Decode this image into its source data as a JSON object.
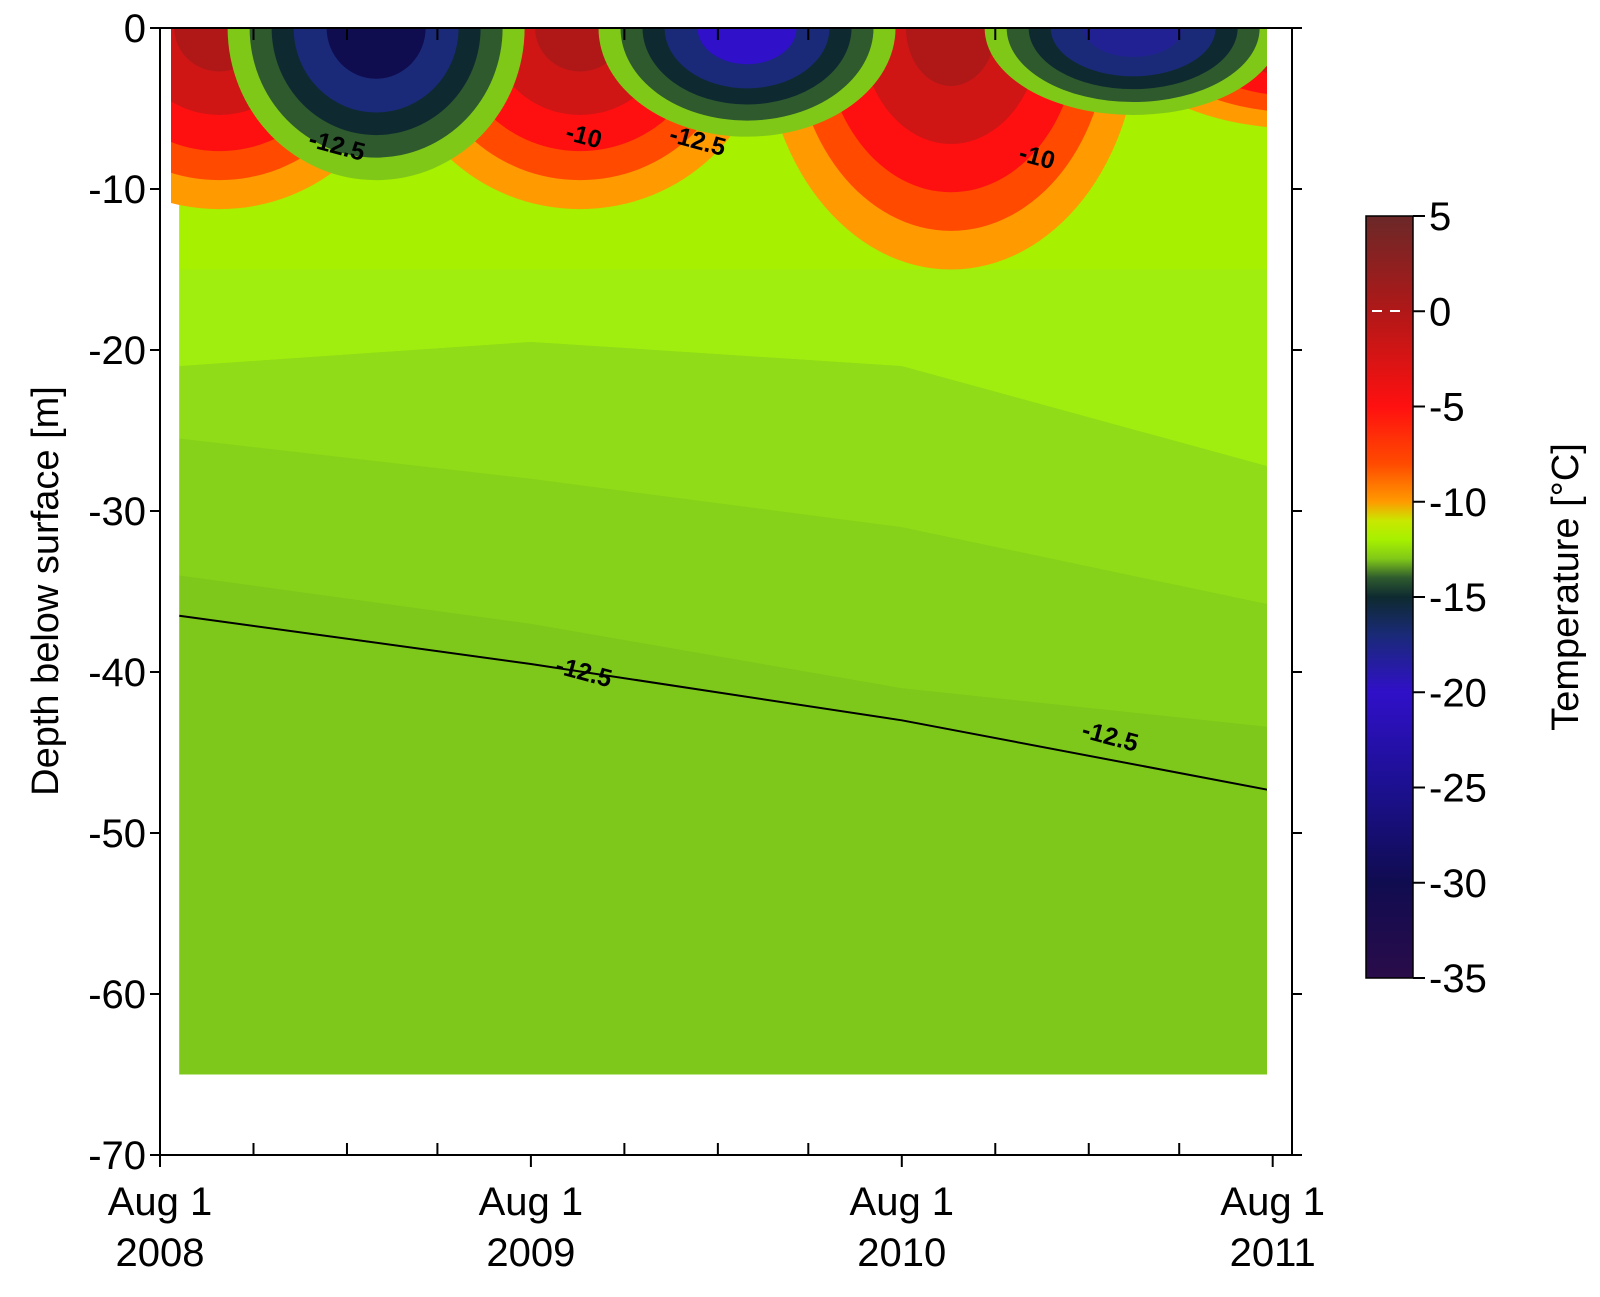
{
  "chart_data": {
    "type": "heatmap",
    "subtype": "filled-contour",
    "title": "",
    "xlabel": "",
    "ylabel": "Depth below surface [m]",
    "x_ticks_major": [
      {
        "date": "2008-08-01",
        "line1": "Aug 1",
        "line2": "2008"
      },
      {
        "date": "2009-08-01",
        "line1": "Aug 1",
        "line2": "2009"
      },
      {
        "date": "2010-08-01",
        "line1": "Aug 1",
        "line2": "2010"
      },
      {
        "date": "2011-08-01",
        "line1": "Aug 1",
        "line2": "2011"
      }
    ],
    "x_ticks_minor": [
      "2008-11-01",
      "2009-02-01",
      "2009-05-01",
      "2009-11-01",
      "2010-02-01",
      "2010-05-01",
      "2010-11-01",
      "2011-02-01",
      "2011-05-01"
    ],
    "xlim": [
      "2008-08-01",
      "2011-08-20"
    ],
    "y_ticks": [
      0,
      -10,
      -20,
      -30,
      -40,
      -50,
      -60,
      -70
    ],
    "y_tick_labels": [
      "0",
      "-10",
      "-20",
      "-30",
      "-40",
      "-50",
      "-60",
      "-70"
    ],
    "ylim": [
      -70,
      0
    ],
    "data_extent": {
      "x": [
        "2008-08-20",
        "2011-08-12"
      ],
      "y": [
        -65,
        0
      ]
    },
    "colorbar": {
      "label": "Temperature [°C]",
      "range": [
        -35,
        5
      ],
      "ticks": [
        5,
        0,
        -5,
        -10,
        -15,
        -20,
        -25,
        -30,
        -35
      ],
      "tick_labels": [
        "5",
        "0",
        "-5",
        "-10",
        "-15",
        "-20",
        "-25",
        "-30",
        "-35"
      ],
      "colormap": [
        {
          "value": 5,
          "color": "#6b2828"
        },
        {
          "value": 0,
          "color": "#b01818"
        },
        {
          "value": -5,
          "color": "#ff1010"
        },
        {
          "value": -8,
          "color": "#ff4a00"
        },
        {
          "value": -10,
          "color": "#ff9a00"
        },
        {
          "value": -11,
          "color": "#c8e800"
        },
        {
          "value": -12,
          "color": "#a6f000"
        },
        {
          "value": -13,
          "color": "#80c818"
        },
        {
          "value": -14,
          "color": "#2e5a2e"
        },
        {
          "value": -15,
          "color": "#0e2a30"
        },
        {
          "value": -17,
          "color": "#1a2a78"
        },
        {
          "value": -20,
          "color": "#3010c8"
        },
        {
          "value": -25,
          "color": "#1c1090"
        },
        {
          "value": -30,
          "color": "#100c50"
        },
        {
          "value": -35,
          "color": "#2a0c4a"
        }
      ]
    },
    "depth_bands": [
      {
        "temperature": -11.8,
        "color": "#a0ee10",
        "top": [
          -15,
          -15,
          -15,
          -15
        ],
        "bottom": [
          -21,
          -19.5,
          -21,
          -27.5
        ]
      },
      {
        "temperature": -12.1,
        "color": "#90dc18",
        "top": [
          -21,
          -19.5,
          -21,
          -27.5
        ],
        "bottom": [
          -25.5,
          -28,
          -31,
          -36
        ]
      },
      {
        "temperature": -12.3,
        "color": "#86d21a",
        "top": [
          -25.5,
          -28,
          -31,
          -36
        ],
        "bottom": [
          -34,
          -37,
          -41,
          -43.5
        ]
      },
      {
        "temperature": -12.5,
        "color": "#7ec81c",
        "top": [
          -34,
          -37,
          -41,
          -43.5
        ],
        "bottom": [
          -65,
          -65,
          -65,
          -65
        ]
      }
    ],
    "seasonal_cold_minima": [
      {
        "date": "2009-02-10",
        "temperature": -30,
        "depth_extent": -7
      },
      {
        "date": "2010-02-10",
        "temperature": -20,
        "depth_extent": -5
      },
      {
        "date": "2011-02-25",
        "temperature": -18,
        "depth_extent": -4
      }
    ],
    "seasonal_warm_maxima": [
      {
        "date": "2008-08-20",
        "temperature": 0,
        "depth_extent": -9
      },
      {
        "date": "2009-08-10",
        "temperature": 0,
        "depth_extent": -9
      },
      {
        "date": "2010-08-10",
        "temperature": 0,
        "depth_extent": -12
      },
      {
        "date": "2011-07-20",
        "temperature": 0,
        "depth_extent": -5
      }
    ],
    "contours": [
      {
        "level": -12.5,
        "points": [
          [
            "2008-08-20",
            -36.5
          ],
          [
            "2009-08-01",
            -39.5
          ],
          [
            "2010-08-01",
            -43
          ],
          [
            "2011-08-12",
            -47.5
          ]
        ]
      }
    ],
    "contour_labels": [
      {
        "text": "-12.5",
        "date": "2009-01-20",
        "depth": -7.8
      },
      {
        "text": "-10",
        "date": "2009-09-20",
        "depth": -7.2
      },
      {
        "text": "-12.5",
        "date": "2010-01-10",
        "depth": -7.5
      },
      {
        "text": "-10",
        "date": "2010-12-10",
        "depth": -8.5
      },
      {
        "text": "-12.5",
        "date": "2009-09-20",
        "depth": -40.5
      },
      {
        "text": "-12.5",
        "date": "2011-02-20",
        "depth": -44.5
      }
    ]
  }
}
